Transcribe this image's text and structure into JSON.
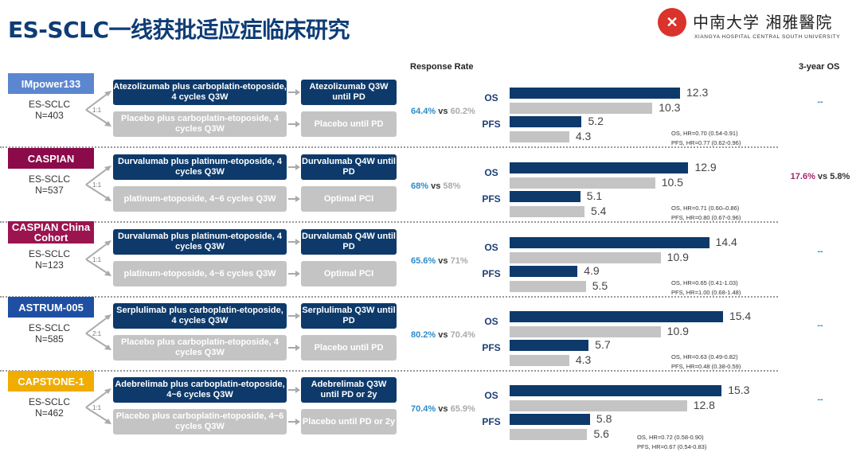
{
  "title": "ES-SCLC一线获批适应症临床研究",
  "logo": {
    "seal": "X",
    "cn": "中南大学 湘雅醫院",
    "en": "XIANGYA HOSPITAL CENTRAL SOUTH UNIVERSITY"
  },
  "headers": {
    "response_rate": "Response Rate",
    "three_year_os": "3-year OS"
  },
  "endpoint_labels": {
    "os": "OS",
    "pfs": "PFS"
  },
  "colors": {
    "experimental": "#0d3a6b",
    "control": "#c4c4c4",
    "rr_highlight": "#2e8bc9",
    "os3_highlight": "#a0286a"
  },
  "studies": [
    {
      "name": "IMpower133",
      "color": "#5b86d0",
      "population": "ES-SCLC",
      "n": "N=403",
      "ratio": "1:1",
      "exp_induction": "Atezolizumab plus carboplatin-etoposide, 4 cycles Q3W",
      "exp_maint": "Atezolizumab Q3W until PD",
      "ctl_induction": "Placebo plus carboplatin-etoposide, 4 cycles Q3W",
      "ctl_maint": "Placebo until PD",
      "rr_exp": "64.4%",
      "rr_vs": "vs",
      "rr_ctl": "60.2%",
      "os": [
        12.3,
        10.3
      ],
      "pfs": [
        5.2,
        4.3
      ],
      "hr_os": "OS, HR=0.70 (0.54-0.91)",
      "hr_pfs": "PFS, HR=0.77 (0.62-0.96)",
      "os3_exp": "--",
      "os3_vs": "",
      "os3_ctl": ""
    },
    {
      "name": "CASPIAN",
      "color": "#8b0a4a",
      "population": "ES-SCLC",
      "n": "N=537",
      "ratio": "1:1",
      "exp_induction": "Durvalumab plus platinum-etoposide, 4 cycles Q3W",
      "exp_maint": "Durvalumab Q4W until PD",
      "ctl_induction": "platinum-etoposide, 4~6 cycles Q3W",
      "ctl_maint": "Optimal PCI",
      "rr_exp": "68%",
      "rr_vs": "vs",
      "rr_ctl": "58%",
      "os": [
        12.9,
        10.5
      ],
      "pfs": [
        5.1,
        5.4
      ],
      "hr_os": "OS, HR=0.71 (0.60–0.86)",
      "hr_pfs": "PFS, HR=0.80 (0.67-0.96)",
      "os3_exp": "17.6%",
      "os3_vs": " vs ",
      "os3_ctl": "5.8%"
    },
    {
      "name": "CASPIAN China Cohort",
      "color": "#9b1450",
      "population": "ES-SCLC",
      "n": "N=123",
      "ratio": "1:1",
      "exp_induction": "Durvalumab plus platinum-etoposide, 4 cycles Q3W",
      "exp_maint": "Durvalumab Q4W until PD",
      "ctl_induction": "platinum-etoposide, 4~6 cycles Q3W",
      "ctl_maint": "Optimal PCI",
      "rr_exp": "65.6%",
      "rr_vs": "vs",
      "rr_ctl": "71%",
      "os": [
        14.4,
        10.9
      ],
      "pfs": [
        4.9,
        5.5
      ],
      "hr_os": "OS, HR=0.65 (0.41-1.03)",
      "hr_pfs": "PFS, HR=1.00 (0.68-1.48)",
      "os3_exp": "--",
      "os3_vs": "",
      "os3_ctl": ""
    },
    {
      "name": "ASTRUM-005",
      "color": "#1e4fa3",
      "population": "ES-SCLC",
      "n": "N=585",
      "ratio": "2:1",
      "exp_induction": "Serplulimab plus carboplatin-etoposide, 4 cycles Q3W",
      "exp_maint": "Serplulimab Q3W until PD",
      "ctl_induction": "Placebo plus carboplatin-etoposide, 4 cycles Q3W",
      "ctl_maint": "Placebo until PD",
      "rr_exp": "80.2%",
      "rr_vs": "vs",
      "rr_ctl": "70.4%",
      "os": [
        15.4,
        10.9
      ],
      "pfs": [
        5.7,
        4.3
      ],
      "hr_os": "OS, HR=0.63 (0.49-0.82)",
      "hr_pfs": "PFS, HR=0.48 (0.38-0.59)",
      "os3_exp": "--",
      "os3_vs": "",
      "os3_ctl": ""
    },
    {
      "name": "CAPSTONE-1",
      "color": "#f0ad00",
      "population": "ES-SCLC",
      "n": "N=462",
      "ratio": "1:1",
      "exp_induction": "Adebrelimab plus carboplatin-etoposide, 4~6 cycles Q3W",
      "exp_maint": "Adebrelimab Q3W until PD or 2y",
      "ctl_induction": "Placebo plus carboplatin-etoposide, 4~6 cycles Q3W",
      "ctl_maint": "Placebo until PD or 2y",
      "rr_exp": "70.4%",
      "rr_vs": "vs",
      "rr_ctl": "65.9%",
      "os": [
        15.3,
        12.8
      ],
      "pfs": [
        5.8,
        5.6
      ],
      "hr_os": "OS, HR=0.72 (0.58-0.90)",
      "hr_pfs": "PFS, HR=0.67 (0.54-0.83)",
      "os3_exp": "--",
      "os3_vs": "",
      "os3_ctl": ""
    }
  ]
}
